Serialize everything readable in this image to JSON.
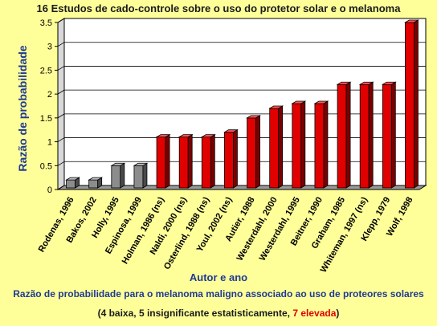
{
  "chart_data": {
    "type": "bar",
    "title": "16 Estudos de cado-controle sobre o uso do protetor solar e o melanoma",
    "xlabel": "Autor e ano",
    "ylabel": "Razão de probabilidade",
    "ylim": [
      0,
      3.5
    ],
    "yticks": [
      "0",
      "0.5",
      "1",
      "1.5",
      "2",
      "2.5",
      "3",
      "3.5"
    ],
    "grid": true,
    "categories": [
      "Rodenas, 1996",
      "Bakos, 2002",
      "Holly, 1995",
      "Espinosa, 1999",
      "Holman, 1986 (ns)",
      "Naldi, 2000 (ns)",
      "Osterlind, 1988 (ns)",
      "Youl, 2002 (ns)",
      "Autier, 1988",
      "Westerdahl, 2000",
      "Westerdahl, 1995",
      "Beitner, 1990",
      "Graham, 1985",
      "Whiteman, 1997 (ns)",
      "Klepp, 1979",
      "Wolf, 1998"
    ],
    "values": [
      0.2,
      0.2,
      0.5,
      0.5,
      1.1,
      1.1,
      1.1,
      1.2,
      1.5,
      1.7,
      1.8,
      1.8,
      2.2,
      2.2,
      2.2,
      3.5
    ],
    "bar_colors": [
      "#8c8c8c",
      "#8c8c8c",
      "#8c8c8c",
      "#8c8c8c",
      "#e00000",
      "#e00000",
      "#e00000",
      "#e00000",
      "#e00000",
      "#e00000",
      "#e00000",
      "#e00000",
      "#e00000",
      "#e00000",
      "#e00000",
      "#e00000"
    ]
  },
  "caption": "Razão de probabilidade para o melanoma maligno associado ao uso de proteores solares",
  "legend_note": {
    "part1": "(4 baixa, 5 insignificante estatisticamente, ",
    "part2": "7 elevada",
    "part3": ")"
  }
}
